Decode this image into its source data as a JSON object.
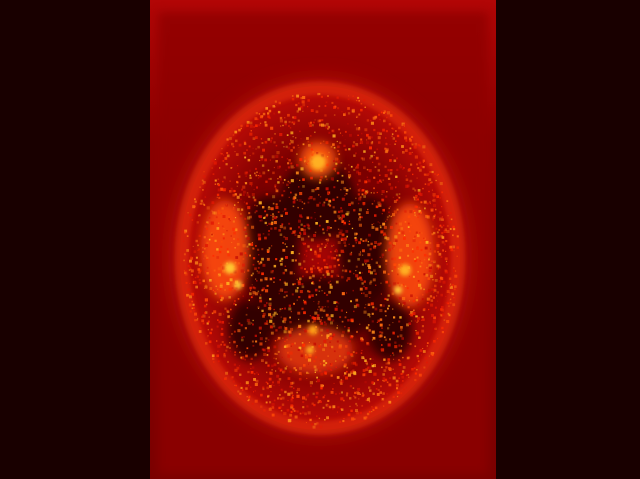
{
  "image": {
    "subject": "axial-brain-mri-heatmap",
    "colormap": "hot",
    "colors": {
      "background_outer": "#190000",
      "panel_fill": "#8a0000",
      "panel_edge": "#c00808",
      "tissue_dark": "#3a0000",
      "tissue_mid": "#b40808",
      "tissue_bright": "#ff3b00",
      "hotspot": "#ffd23a"
    }
  }
}
